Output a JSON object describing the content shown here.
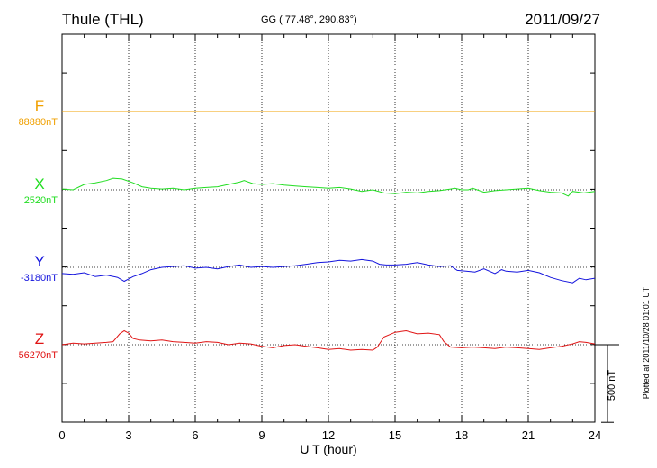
{
  "header": {
    "station": "Thule (THL)",
    "coordinates": "GG ( 77.48°, 290.83°)",
    "date": "2011/09/27"
  },
  "chart_data": {
    "type": "line",
    "title": "Thule (THL)",
    "xlabel": "U T (hour)",
    "xlim": [
      0,
      24
    ],
    "x_ticks": [
      "0",
      "3",
      "6",
      "9",
      "12",
      "15",
      "18",
      "21",
      "24"
    ],
    "grid": true,
    "scale_bar": "500 nT",
    "nT_per_division": 250,
    "series": [
      {
        "name": "F",
        "baseline_label": "88880nT",
        "color": "#f0a000",
        "x": [
          0,
          24
        ],
        "y": [
          88880,
          88880
        ]
      },
      {
        "name": "X",
        "baseline_label": "2520nT",
        "color": "#22dd22",
        "x": [
          0,
          0.5,
          1,
          1.5,
          2,
          2.3,
          2.7,
          3.2,
          3.6,
          4,
          4.5,
          5,
          5.5,
          6,
          6.5,
          7,
          7.5,
          8,
          8.2,
          8.6,
          9,
          9.5,
          10,
          10.5,
          11,
          11.5,
          12,
          12.5,
          13,
          13.5,
          14,
          14.5,
          15,
          15.5,
          16,
          16.5,
          17,
          17.5,
          17.7,
          18,
          18.3,
          18.5,
          19,
          19.5,
          20,
          20.5,
          21,
          21.5,
          22,
          22.5,
          22.8,
          23,
          23.5,
          24
        ],
        "y": [
          2525,
          2520,
          2555,
          2565,
          2580,
          2595,
          2590,
          2565,
          2540,
          2530,
          2525,
          2530,
          2520,
          2530,
          2535,
          2540,
          2555,
          2570,
          2580,
          2560,
          2555,
          2560,
          2550,
          2545,
          2540,
          2535,
          2530,
          2535,
          2525,
          2510,
          2520,
          2500,
          2495,
          2505,
          2500,
          2510,
          2515,
          2525,
          2530,
          2520,
          2520,
          2530,
          2505,
          2515,
          2520,
          2525,
          2530,
          2515,
          2505,
          2500,
          2480,
          2510,
          2500,
          2510
        ]
      },
      {
        "name": "Y",
        "baseline_label": "-3180nT",
        "color": "#1414dd",
        "x": [
          0,
          0.5,
          1,
          1.5,
          2,
          2.5,
          2.8,
          3.2,
          3.6,
          4,
          4.5,
          5,
          5.5,
          6,
          6.5,
          7,
          7.5,
          8,
          8.5,
          9,
          9.5,
          10,
          10.5,
          11,
          11.5,
          12,
          12.5,
          13,
          13.5,
          14,
          14.3,
          14.6,
          15,
          15.5,
          16,
          16.5,
          17,
          17.5,
          17.8,
          18.2,
          18.6,
          19,
          19.5,
          19.8,
          20,
          20.5,
          21,
          21.5,
          22,
          22.5,
          23,
          23.3,
          23.6,
          24
        ],
        "y": [
          -3220,
          -3225,
          -3215,
          -3240,
          -3230,
          -3245,
          -3270,
          -3240,
          -3220,
          -3195,
          -3180,
          -3175,
          -3170,
          -3185,
          -3180,
          -3190,
          -3175,
          -3165,
          -3180,
          -3175,
          -3180,
          -3175,
          -3170,
          -3160,
          -3150,
          -3145,
          -3135,
          -3140,
          -3130,
          -3140,
          -3160,
          -3165,
          -3165,
          -3160,
          -3150,
          -3165,
          -3175,
          -3170,
          -3200,
          -3205,
          -3210,
          -3190,
          -3220,
          -3195,
          -3205,
          -3210,
          -3200,
          -3215,
          -3245,
          -3265,
          -3280,
          -3250,
          -3260,
          -3250
        ]
      },
      {
        "name": "Z",
        "baseline_label": "56270nT",
        "color": "#e01414",
        "x": [
          0,
          0.5,
          1,
          1.5,
          2,
          2.3,
          2.6,
          2.8,
          3,
          3.2,
          3.5,
          4,
          4.5,
          5,
          5.5,
          6,
          6.5,
          7,
          7.5,
          8,
          8.5,
          9,
          9.5,
          10,
          10.5,
          11,
          11.5,
          12,
          12.5,
          13,
          13.5,
          14,
          14.2,
          14.5,
          15,
          15.5,
          16,
          16.5,
          17,
          17.2,
          17.5,
          18,
          18.5,
          19,
          19.5,
          20,
          20.5,
          21,
          21.5,
          22,
          22.5,
          23,
          23.3,
          23.6,
          24
        ],
        "y": [
          56270,
          56280,
          56275,
          56280,
          56285,
          56290,
          56340,
          56360,
          56345,
          56310,
          56300,
          56295,
          56300,
          56290,
          56285,
          56280,
          56290,
          56285,
          56270,
          56280,
          56275,
          56260,
          56250,
          56265,
          56270,
          56260,
          56250,
          56240,
          56245,
          56235,
          56240,
          56235,
          56255,
          56320,
          56350,
          56360,
          56340,
          56345,
          56335,
          56290,
          56255,
          56250,
          56255,
          56250,
          56245,
          56255,
          56250,
          56245,
          56240,
          56250,
          56260,
          56275,
          56290,
          56285,
          56275
        ]
      }
    ]
  },
  "footer": {
    "scale_label": "500 nT",
    "plotted_note": "Plotted at 2011/10/28 01:01 UT"
  }
}
